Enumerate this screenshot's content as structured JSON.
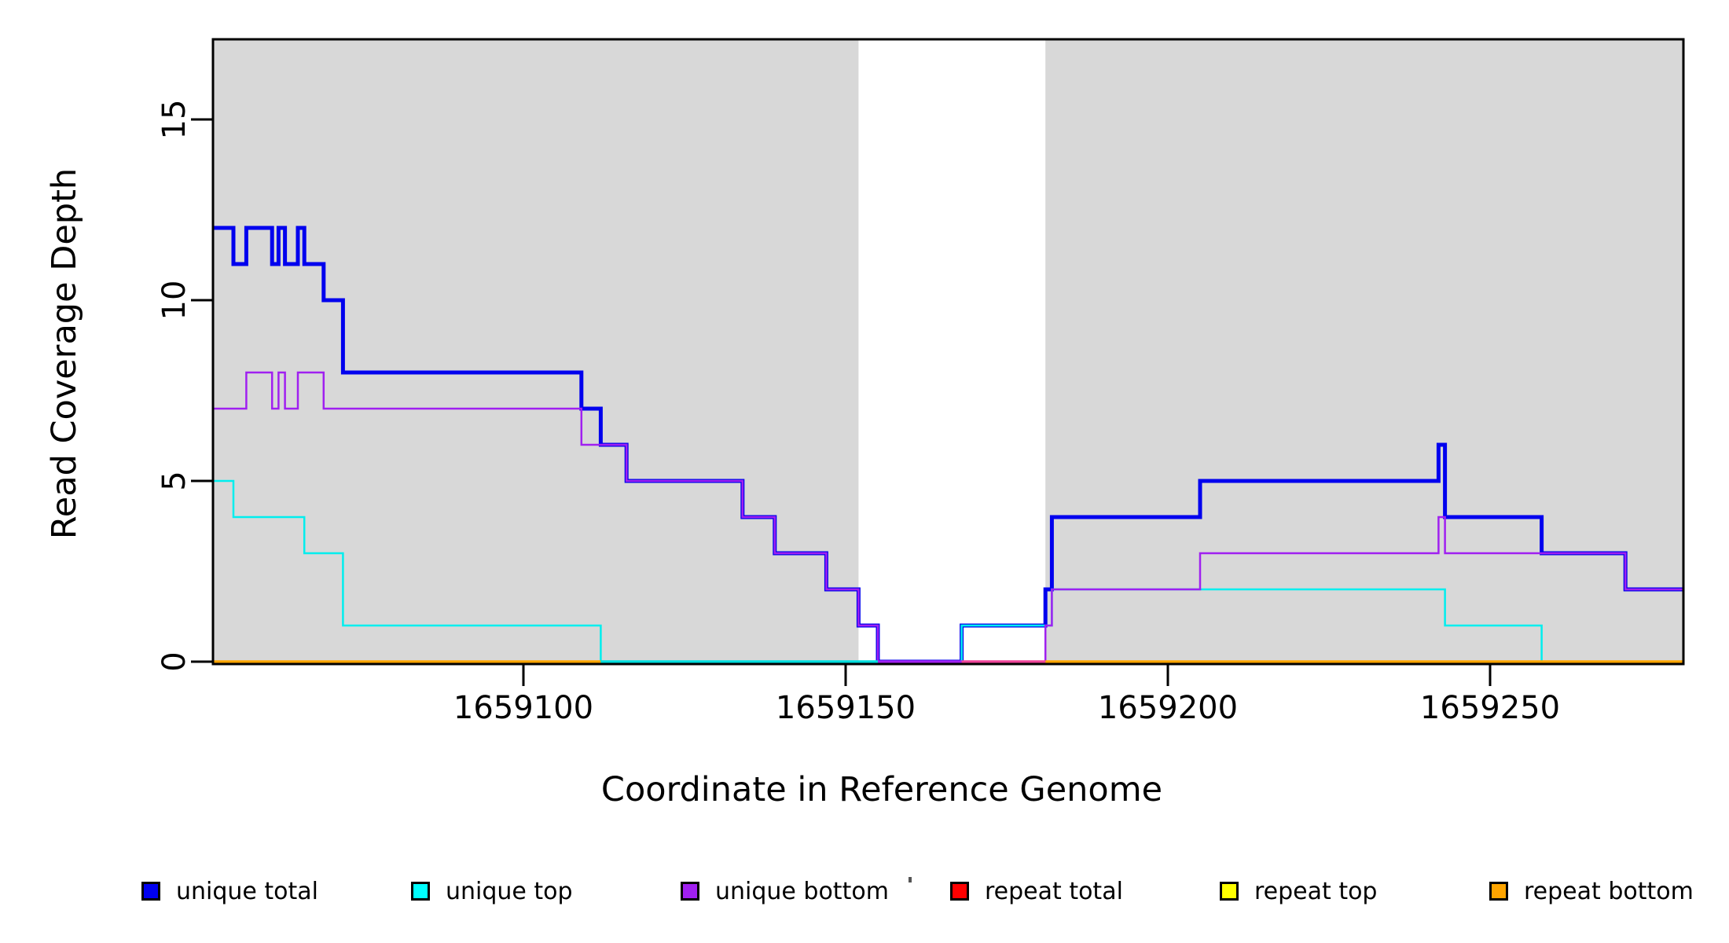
{
  "figure": {
    "kind": "R base-graphics style coverage plot",
    "background": "#ffffff"
  },
  "axes": {
    "x_label": "Coordinate in Reference Genome",
    "y_label": "Read Coverage Depth"
  },
  "legend": {
    "items": [
      {
        "label": "unique total",
        "color": "#0000F0"
      },
      {
        "label": "unique top",
        "color": "#00FFFF"
      },
      {
        "label": "unique bottom",
        "color": "#A020F0"
      },
      {
        "label": "repeat total",
        "color": "#FF0000"
      },
      {
        "label": "repeat top",
        "color": "#FFFF00"
      },
      {
        "label": "repeat bottom",
        "color": "#FFA500"
      }
    ]
  },
  "chart_data": {
    "type": "line",
    "subtype": "step",
    "title": "",
    "xlabel": "Coordinate in Reference Genome",
    "ylabel": "Read Coverage Depth",
    "xlim": [
      1659051.8,
      1659280
    ],
    "ylim": [
      0,
      17.3
    ],
    "grid": false,
    "legend_position": "bottom",
    "xticks": [
      1659100,
      1659150,
      1659200,
      1659250
    ],
    "xtick_labels": [
      "1659100",
      "1659150",
      "1659200",
      "1659250"
    ],
    "yticks": [
      0,
      5,
      10,
      15
    ],
    "ytick_labels": [
      "0",
      "5",
      "10",
      "15"
    ],
    "shade_color": "#D8D8D8",
    "shaded_regions": [
      [
        1659051.8,
        1659152
      ],
      [
        1659181,
        1659280
      ]
    ],
    "series": [
      {
        "name": "unique total",
        "color": "#0000EE",
        "width": 5,
        "points": [
          [
            1659051.8,
            12
          ],
          [
            1659055,
            11
          ],
          [
            1659057,
            12
          ],
          [
            1659061,
            11
          ],
          [
            1659062,
            12
          ],
          [
            1659063,
            11
          ],
          [
            1659065,
            12
          ],
          [
            1659066,
            11
          ],
          [
            1659069,
            10
          ],
          [
            1659072,
            8
          ],
          [
            1659109,
            7
          ],
          [
            1659112,
            6
          ],
          [
            1659116,
            5
          ],
          [
            1659134,
            4
          ],
          [
            1659139,
            3
          ],
          [
            1659147,
            2
          ],
          [
            1659152,
            1
          ],
          [
            1659155,
            0
          ],
          [
            1659168,
            1
          ],
          [
            1659181,
            2
          ],
          [
            1659182,
            4
          ],
          [
            1659205,
            5
          ],
          [
            1659242,
            6
          ],
          [
            1659243,
            4
          ],
          [
            1659258,
            3
          ],
          [
            1659271,
            2
          ],
          [
            1659280,
            2
          ]
        ]
      },
      {
        "name": "unique top",
        "color": "#00EEEE",
        "width": 2.5,
        "points": [
          [
            1659051.8,
            5
          ],
          [
            1659055,
            4
          ],
          [
            1659066,
            3
          ],
          [
            1659072,
            1
          ],
          [
            1659112,
            0
          ],
          [
            1659168,
            1
          ],
          [
            1659182,
            2
          ],
          [
            1659243,
            1
          ],
          [
            1659258,
            0
          ],
          [
            1659280,
            0
          ]
        ]
      },
      {
        "name": "unique bottom",
        "color": "#A020F0",
        "width": 2.5,
        "points": [
          [
            1659051.8,
            7
          ],
          [
            1659057,
            8
          ],
          [
            1659061,
            7
          ],
          [
            1659062,
            8
          ],
          [
            1659063,
            7
          ],
          [
            1659065,
            8
          ],
          [
            1659069,
            7
          ],
          [
            1659109,
            6
          ],
          [
            1659116,
            5
          ],
          [
            1659134,
            4
          ],
          [
            1659139,
            3
          ],
          [
            1659147,
            2
          ],
          [
            1659152,
            1
          ],
          [
            1659155,
            0
          ],
          [
            1659181,
            1
          ],
          [
            1659182,
            2
          ],
          [
            1659205,
            3
          ],
          [
            1659242,
            4
          ],
          [
            1659243,
            3
          ],
          [
            1659271,
            2
          ],
          [
            1659280,
            2
          ]
        ]
      },
      {
        "name": "repeat total",
        "color": "#FF0000",
        "width": 3,
        "points": [
          [
            1659051.8,
            0
          ],
          [
            1659280,
            0
          ]
        ]
      },
      {
        "name": "repeat top",
        "color": "#FFFF00",
        "width": 3,
        "points": [
          [
            1659051.8,
            0
          ],
          [
            1659280,
            0
          ]
        ]
      },
      {
        "name": "repeat bottom",
        "color": "#FFA500",
        "width": 3,
        "points": [
          [
            1659051.8,
            0
          ],
          [
            1659280,
            0
          ]
        ]
      }
    ],
    "zero_line_visible_segments": [
      {
        "from": 1659051.8,
        "to": 1659112,
        "color": "#FFA500"
      },
      {
        "from": 1659112,
        "to": 1659155,
        "color": "#00DDDD"
      },
      {
        "from": 1659155,
        "to": 1659168,
        "color": "#A020F0"
      },
      {
        "from": 1659168,
        "to": 1659181,
        "color": "#EE4499"
      },
      {
        "from": 1659181,
        "to": 1659280,
        "color": "#FFA500"
      }
    ]
  }
}
